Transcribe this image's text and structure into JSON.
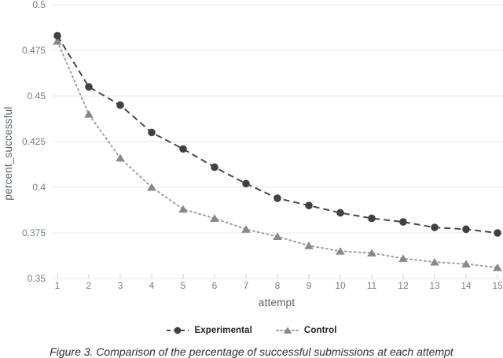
{
  "chart_data": {
    "type": "line",
    "title": "",
    "xlabel": "attempt",
    "ylabel": "percent_successful",
    "x": [
      1,
      2,
      3,
      4,
      5,
      6,
      7,
      8,
      9,
      10,
      11,
      12,
      13,
      14,
      15
    ],
    "series": [
      {
        "name": "Control",
        "marker": "triangle",
        "line_style": "dotted",
        "color": "#87898d",
        "line_color": "#9ea1a5",
        "values": [
          0.48,
          0.44,
          0.416,
          0.4,
          0.388,
          0.383,
          0.377,
          0.373,
          0.368,
          0.365,
          0.364,
          0.361,
          0.359,
          0.358,
          0.356
        ]
      },
      {
        "name": "Experimental",
        "marker": "circle",
        "line_style": "dashed",
        "color": "#3e4146",
        "line_color": "#46494e",
        "values": [
          0.483,
          0.455,
          0.445,
          0.43,
          0.421,
          0.411,
          0.402,
          0.394,
          0.39,
          0.386,
          0.383,
          0.381,
          0.378,
          0.377,
          0.375
        ]
      }
    ],
    "ylim": [
      0.35,
      0.5
    ],
    "yticks": [
      0.35,
      0.375,
      0.4,
      0.425,
      0.45,
      0.475,
      0.5
    ],
    "xticks": [
      1,
      2,
      3,
      4,
      5,
      6,
      7,
      8,
      9,
      10,
      11,
      12,
      13,
      14,
      15
    ],
    "grid": "horizontal",
    "legend_position": "bottom"
  },
  "caption": "Figure 3. Comparison of the percentage of successful submissions at each attempt",
  "colors": {
    "background": "#ffffff",
    "gridline": "#e8e8e8",
    "tick_mark": "#c8d4e2",
    "tick_label": "#75808c",
    "axis_title": "#59636d",
    "legend_text": "#222222",
    "caption_text": "#2e2e2e"
  }
}
